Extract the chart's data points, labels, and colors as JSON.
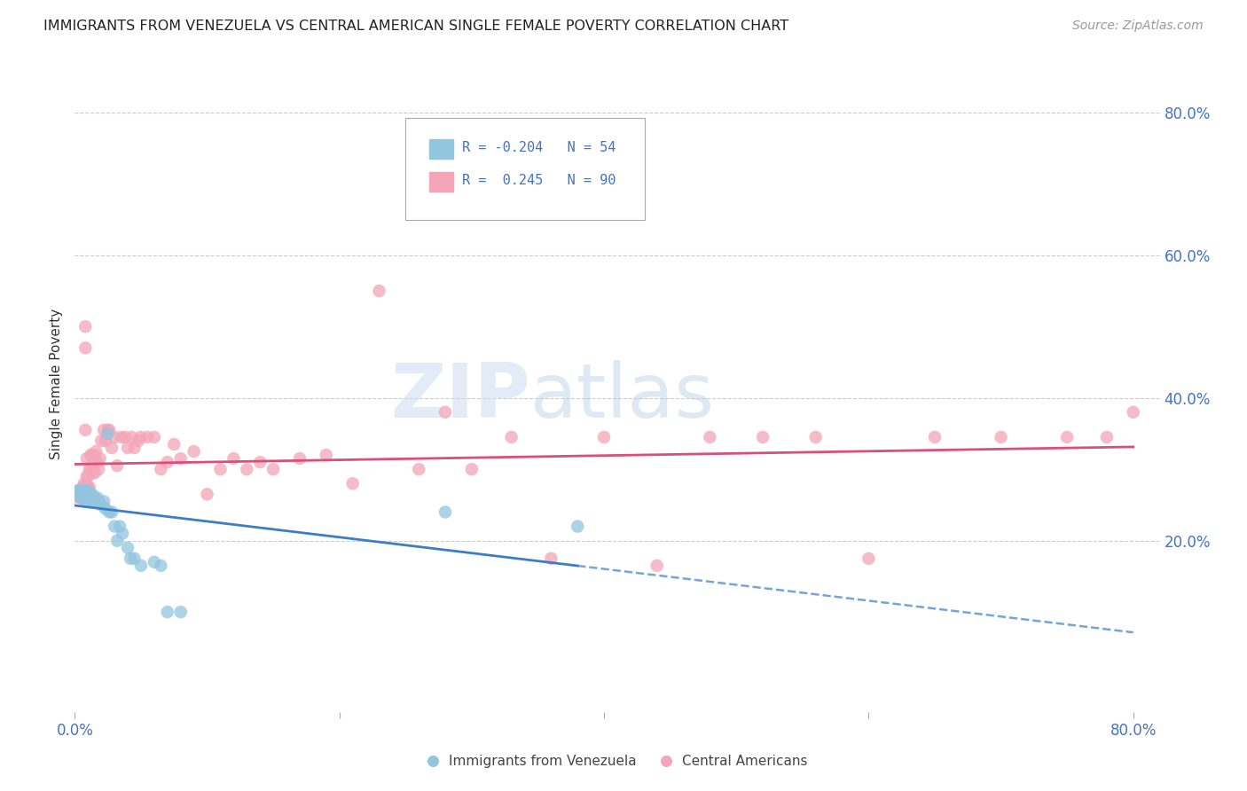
{
  "title": "IMMIGRANTS FROM VENEZUELA VS CENTRAL AMERICAN SINGLE FEMALE POVERTY CORRELATION CHART",
  "source": "Source: ZipAtlas.com",
  "ylabel": "Single Female Poverty",
  "ytick_labels": [
    "20.0%",
    "40.0%",
    "60.0%",
    "80.0%"
  ],
  "ytick_values": [
    0.2,
    0.4,
    0.6,
    0.8
  ],
  "xlim": [
    0.0,
    0.82
  ],
  "ylim": [
    -0.04,
    0.88
  ],
  "legend_label1": "Immigrants from Venezuela",
  "legend_label2": "Central Americans",
  "r1": "-0.204",
  "n1": "54",
  "r2": "0.245",
  "n2": "90",
  "color_blue": "#92c5de",
  "color_pink": "#f4a5b8",
  "color_blue_line": "#3a7ec6",
  "color_pink_line": "#d94f7a",
  "color_axis_labels": "#4472c4",
  "background_color": "#ffffff",
  "watermark_zip": "ZIP",
  "watermark_atlas": "atlas",
  "venezuela_x": [
    0.002,
    0.003,
    0.004,
    0.005,
    0.005,
    0.006,
    0.006,
    0.006,
    0.007,
    0.007,
    0.007,
    0.008,
    0.008,
    0.008,
    0.008,
    0.009,
    0.009,
    0.009,
    0.009,
    0.009,
    0.01,
    0.01,
    0.01,
    0.011,
    0.011,
    0.012,
    0.012,
    0.013,
    0.013,
    0.014,
    0.015,
    0.016,
    0.017,
    0.018,
    0.02,
    0.022,
    0.023,
    0.025,
    0.026,
    0.028,
    0.03,
    0.032,
    0.034,
    0.036,
    0.04,
    0.042,
    0.045,
    0.05,
    0.06,
    0.065,
    0.07,
    0.08,
    0.28,
    0.38
  ],
  "venezuela_y": [
    0.265,
    0.27,
    0.27,
    0.26,
    0.265,
    0.27,
    0.265,
    0.26,
    0.27,
    0.265,
    0.26,
    0.27,
    0.265,
    0.265,
    0.26,
    0.27,
    0.265,
    0.265,
    0.26,
    0.255,
    0.27,
    0.265,
    0.26,
    0.265,
    0.26,
    0.265,
    0.26,
    0.255,
    0.265,
    0.26,
    0.26,
    0.255,
    0.26,
    0.255,
    0.25,
    0.255,
    0.245,
    0.35,
    0.24,
    0.24,
    0.22,
    0.2,
    0.22,
    0.21,
    0.19,
    0.175,
    0.175,
    0.165,
    0.17,
    0.165,
    0.1,
    0.1,
    0.24,
    0.22
  ],
  "central_x": [
    0.001,
    0.002,
    0.002,
    0.003,
    0.003,
    0.003,
    0.004,
    0.004,
    0.004,
    0.005,
    0.005,
    0.005,
    0.005,
    0.006,
    0.006,
    0.006,
    0.006,
    0.007,
    0.007,
    0.007,
    0.008,
    0.008,
    0.008,
    0.009,
    0.009,
    0.009,
    0.01,
    0.01,
    0.01,
    0.011,
    0.011,
    0.012,
    0.012,
    0.013,
    0.013,
    0.014,
    0.015,
    0.015,
    0.016,
    0.017,
    0.018,
    0.019,
    0.02,
    0.022,
    0.023,
    0.025,
    0.026,
    0.028,
    0.03,
    0.032,
    0.035,
    0.038,
    0.04,
    0.043,
    0.045,
    0.048,
    0.05,
    0.055,
    0.06,
    0.065,
    0.07,
    0.075,
    0.08,
    0.09,
    0.1,
    0.11,
    0.12,
    0.13,
    0.14,
    0.15,
    0.17,
    0.19,
    0.21,
    0.23,
    0.26,
    0.28,
    0.3,
    0.33,
    0.36,
    0.4,
    0.44,
    0.48,
    0.52,
    0.56,
    0.6,
    0.65,
    0.7,
    0.75,
    0.78,
    0.8
  ],
  "central_y": [
    0.265,
    0.27,
    0.265,
    0.27,
    0.265,
    0.26,
    0.27,
    0.265,
    0.26,
    0.27,
    0.265,
    0.265,
    0.26,
    0.275,
    0.27,
    0.265,
    0.26,
    0.28,
    0.275,
    0.265,
    0.5,
    0.47,
    0.355,
    0.315,
    0.29,
    0.275,
    0.29,
    0.275,
    0.265,
    0.3,
    0.275,
    0.32,
    0.3,
    0.32,
    0.295,
    0.31,
    0.32,
    0.295,
    0.325,
    0.31,
    0.3,
    0.315,
    0.34,
    0.355,
    0.34,
    0.355,
    0.355,
    0.33,
    0.345,
    0.305,
    0.345,
    0.345,
    0.33,
    0.345,
    0.33,
    0.34,
    0.345,
    0.345,
    0.345,
    0.3,
    0.31,
    0.335,
    0.315,
    0.325,
    0.265,
    0.3,
    0.315,
    0.3,
    0.31,
    0.3,
    0.315,
    0.32,
    0.28,
    0.55,
    0.3,
    0.38,
    0.3,
    0.345,
    0.175,
    0.345,
    0.165,
    0.345,
    0.345,
    0.345,
    0.175,
    0.345,
    0.345,
    0.345,
    0.345,
    0.38
  ]
}
